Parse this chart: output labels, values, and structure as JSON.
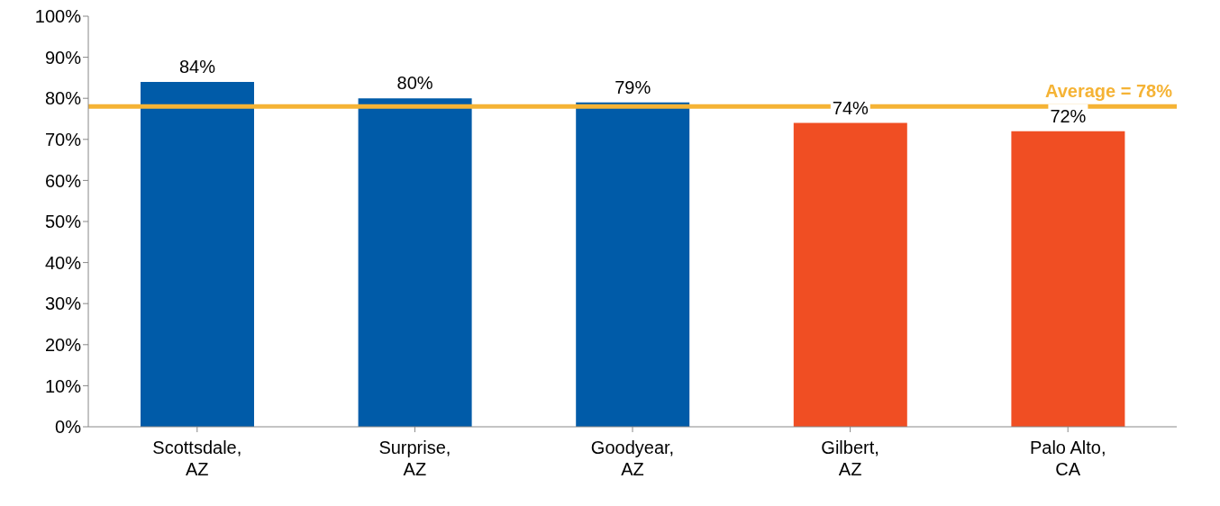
{
  "chart_data": {
    "type": "bar",
    "categories": [
      "Scottsdale,\nAZ",
      "Surprise,\nAZ",
      "Goodyear,\nAZ",
      "Gilbert,\nAZ",
      "Palo Alto,\nCA"
    ],
    "values": [
      84,
      80,
      79,
      74,
      72
    ],
    "colors": [
      "#005ba8",
      "#005ba8",
      "#005ba8",
      "#f04e23",
      "#f04e23"
    ],
    "value_labels": [
      "84%",
      "80%",
      "79%",
      "74%",
      "72%"
    ],
    "ylim": [
      0,
      100
    ],
    "yticks": [
      {
        "value": 0,
        "label": "0%"
      },
      {
        "value": 10,
        "label": "10%"
      },
      {
        "value": 20,
        "label": "20%"
      },
      {
        "value": 30,
        "label": "30%"
      },
      {
        "value": 40,
        "label": "40%"
      },
      {
        "value": 50,
        "label": "50%"
      },
      {
        "value": 60,
        "label": "60%"
      },
      {
        "value": 70,
        "label": "70%"
      },
      {
        "value": 80,
        "label": "80%"
      },
      {
        "value": 90,
        "label": "90%"
      },
      {
        "value": 100,
        "label": "100%"
      }
    ],
    "ref_lines": [
      {
        "axis": "y",
        "value": 78,
        "label": "Average = 78%",
        "color": "#f5b335"
      }
    ],
    "grid": false
  }
}
